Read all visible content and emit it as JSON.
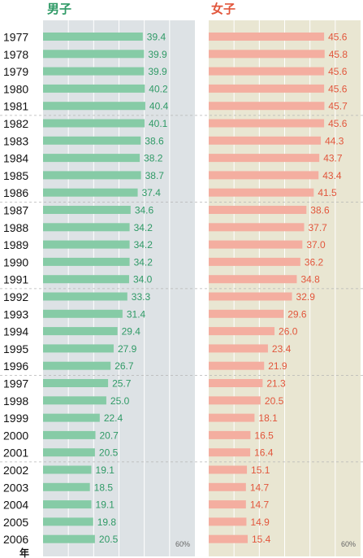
{
  "chart_data": {
    "type": "bar",
    "orientation": "horizontal",
    "panels": [
      "男子",
      "女子"
    ],
    "year_unit": "年",
    "x_max_label": "60%",
    "xlim": [
      0,
      60
    ],
    "categories": [
      "1977",
      "1978",
      "1979",
      "1980",
      "1981",
      "1982",
      "1983",
      "1984",
      "1985",
      "1986",
      "1987",
      "1988",
      "1989",
      "1990",
      "1991",
      "1992",
      "1993",
      "1994",
      "1995",
      "1996",
      "1997",
      "1998",
      "1999",
      "2000",
      "2001",
      "2002",
      "2003",
      "2004",
      "2005",
      "2006"
    ],
    "series": [
      {
        "name": "男子",
        "color": "#86cba6",
        "label_color": "#2f9a66",
        "panel_bg": "#dde2e5",
        "values": [
          39.4,
          39.9,
          39.9,
          40.2,
          40.4,
          40.1,
          38.6,
          38.2,
          38.7,
          37.4,
          34.6,
          34.2,
          34.2,
          34.2,
          34.0,
          33.3,
          31.4,
          29.4,
          27.9,
          26.7,
          25.7,
          25.0,
          22.4,
          20.7,
          20.5,
          19.1,
          18.5,
          19.1,
          19.8,
          20.5
        ]
      },
      {
        "name": "女子",
        "color": "#f4aea0",
        "label_color": "#e2563c",
        "panel_bg": "#e9e6d2",
        "values": [
          45.6,
          45.8,
          45.6,
          45.6,
          45.7,
          45.6,
          44.3,
          43.7,
          43.4,
          41.5,
          38.6,
          37.7,
          37.0,
          36.2,
          34.8,
          32.9,
          29.6,
          26.0,
          23.4,
          21.9,
          21.3,
          20.5,
          18.1,
          16.5,
          16.4,
          15.1,
          14.7,
          14.7,
          14.9,
          15.4
        ]
      }
    ]
  }
}
